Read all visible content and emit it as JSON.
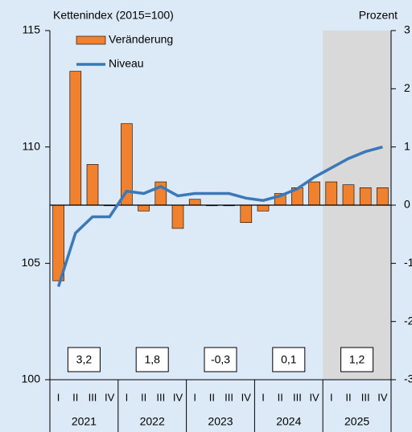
{
  "chart_data": {
    "type": "bar_line",
    "y_label": "Kettenindex (2015=100)",
    "y2_label": "Prozent",
    "categories": [
      "I",
      "II",
      "III",
      "IV",
      "I",
      "II",
      "III",
      "IV",
      "I",
      "II",
      "III",
      "IV",
      "I",
      "II",
      "III",
      "IV",
      "I",
      "II",
      "III",
      "IV"
    ],
    "years": [
      "2021",
      "2022",
      "2023",
      "2024",
      "2025"
    ],
    "annual": {
      "values": [
        3.2,
        1.8,
        -0.3,
        0.1,
        1.2
      ],
      "value_labels": [
        "3,2",
        "1,8",
        "-0,3",
        "0,1",
        "1,2"
      ]
    },
    "series": [
      {
        "name": "Veränderung",
        "type": "bar",
        "axis": "y2",
        "color": "#f0812f",
        "values": [
          -1.3,
          2.3,
          0.7,
          0.0,
          1.4,
          -0.1,
          0.4,
          -0.4,
          0.1,
          0.0,
          0.0,
          -0.3,
          -0.1,
          0.2,
          0.3,
          0.4,
          0.4,
          0.35,
          0.3,
          0.3
        ]
      },
      {
        "name": "Niveau",
        "type": "line",
        "axis": "y",
        "color": "#3a78b8",
        "values": [
          104.0,
          106.3,
          107.0,
          107.0,
          108.1,
          108.0,
          108.3,
          107.9,
          108.0,
          108.0,
          108.0,
          107.8,
          107.7,
          107.9,
          108.2,
          108.7,
          109.1,
          109.5,
          109.8,
          110.0
        ]
      }
    ],
    "ylim": [
      100,
      115
    ],
    "yticks": [
      100,
      105,
      110,
      115
    ],
    "y2lim": [
      -3,
      3
    ],
    "y2ticks": [
      3,
      2,
      1,
      0,
      -1,
      -2,
      -3
    ],
    "shade_start": 16,
    "shade_color": "#d9d9d9",
    "background": "#dce9f6"
  }
}
